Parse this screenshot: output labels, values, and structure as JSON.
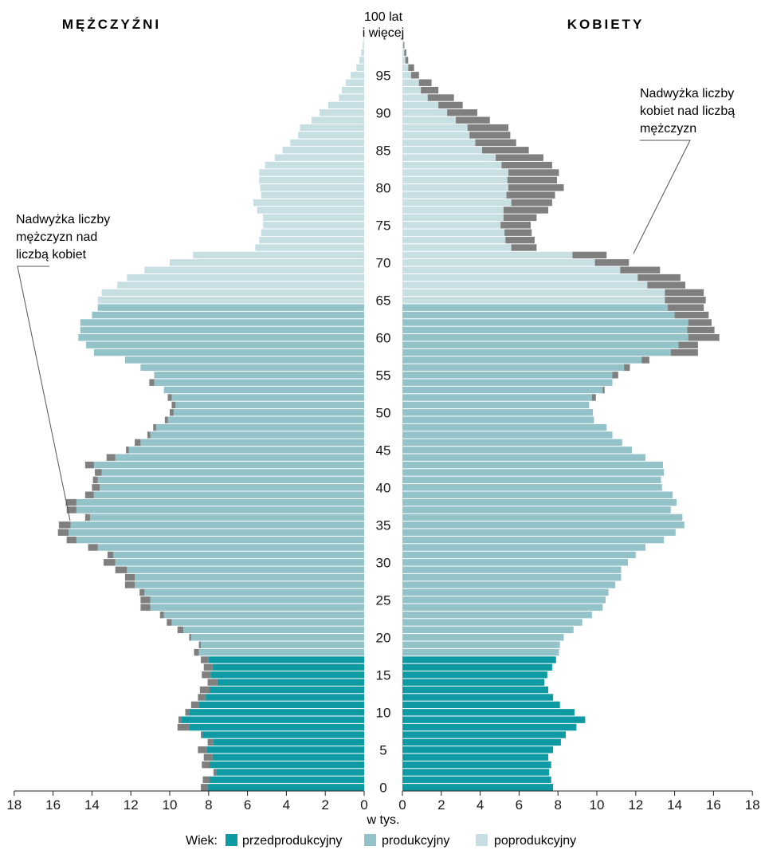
{
  "chart_data": {
    "type": "bar",
    "subtype": "population-pyramid",
    "unit_label": "w tys.",
    "left_title": "MĘŻCZYŹNI",
    "right_title": "KOBIETY",
    "top_age_label_line1": "100 lat",
    "top_age_label_line2": "i więcej",
    "age_tick_labels": [
      "0",
      "5",
      "10",
      "15",
      "20",
      "25",
      "30",
      "35",
      "40",
      "45",
      "50",
      "55",
      "60",
      "65",
      "70",
      "75",
      "80",
      "85",
      "90",
      "95"
    ],
    "x_tick_labels": [
      "18",
      "16",
      "14",
      "12",
      "10",
      "8",
      "6",
      "4",
      "2",
      "0"
    ],
    "x_range": [
      0,
      18
    ],
    "grid": false,
    "legend_position": "bottom",
    "legend": {
      "prefix": "Wiek:",
      "items": [
        {
          "key": "pre",
          "label": "przedprodukcyjny",
          "color": "#0e9aa3"
        },
        {
          "key": "prod",
          "label": "produkcyjny",
          "color": "#93c2c9"
        },
        {
          "key": "post",
          "label": "poprodukcyjny",
          "color": "#c7dfe3"
        }
      ]
    },
    "surplus_color": "#7f7f7f",
    "annotations": {
      "male_surplus": [
        "Nadwyżka liczby",
        "mężczyzn nad",
        "liczbą kobiet"
      ],
      "female_surplus": [
        "Nadwyżka liczby",
        "kobiet nad liczbą",
        "mężczyzn"
      ]
    },
    "ages": [
      0,
      1,
      2,
      3,
      4,
      5,
      6,
      7,
      8,
      9,
      10,
      11,
      12,
      13,
      14,
      15,
      16,
      17,
      18,
      19,
      20,
      21,
      22,
      23,
      24,
      25,
      26,
      27,
      28,
      29,
      30,
      31,
      32,
      33,
      34,
      35,
      36,
      37,
      38,
      39,
      40,
      41,
      42,
      43,
      44,
      45,
      46,
      47,
      48,
      49,
      50,
      51,
      52,
      53,
      54,
      55,
      56,
      57,
      58,
      59,
      60,
      61,
      62,
      63,
      64,
      65,
      66,
      67,
      68,
      69,
      70,
      71,
      72,
      73,
      74,
      75,
      76,
      77,
      78,
      79,
      80,
      81,
      82,
      83,
      84,
      85,
      86,
      87,
      88,
      89,
      90,
      91,
      92,
      93,
      94,
      95,
      96,
      97,
      98,
      99,
      100
    ],
    "series": [
      {
        "name": "MĘŻCZYŹNI",
        "values": [
          8.05,
          7.95,
          7.6,
          7.95,
          7.8,
          8.1,
          7.75,
          8.3,
          9.0,
          9.4,
          9.0,
          8.5,
          8.15,
          7.95,
          7.55,
          7.9,
          7.8,
          8.0,
          8.5,
          8.4,
          8.9,
          9.3,
          9.9,
          10.3,
          11.0,
          11.0,
          11.3,
          11.8,
          11.8,
          12.2,
          12.8,
          12.9,
          13.7,
          14.8,
          15.2,
          15.1,
          14.1,
          14.8,
          14.8,
          13.9,
          13.6,
          13.7,
          13.5,
          13.9,
          12.8,
          12.1,
          11.5,
          11.0,
          10.7,
          10.1,
          9.8,
          9.7,
          9.9,
          10.3,
          10.8,
          10.8,
          11.5,
          12.3,
          13.9,
          14.3,
          14.7,
          14.6,
          14.6,
          14.0,
          13.7,
          13.7,
          13.5,
          12.7,
          12.2,
          11.3,
          10.0,
          8.8,
          5.6,
          5.4,
          5.3,
          5.2,
          5.2,
          5.5,
          5.7,
          5.3,
          5.35,
          5.4,
          5.4,
          5.1,
          4.6,
          4.2,
          3.8,
          3.4,
          3.3,
          2.7,
          2.3,
          1.85,
          1.3,
          1.15,
          0.95,
          0.7,
          0.4,
          0.25,
          0.15,
          0.07,
          0.03
        ],
        "surplus": [
          0.35,
          0.35,
          0.15,
          0.4,
          0.45,
          0.45,
          0.3,
          0.1,
          0.6,
          0.15,
          0.2,
          0.4,
          0.4,
          0.5,
          0.5,
          0.45,
          0.45,
          0.4,
          0.25,
          0.1,
          0.1,
          0.3,
          0.25,
          0.2,
          0.5,
          0.5,
          0.25,
          0.5,
          0.5,
          0.6,
          0.6,
          0.3,
          0.5,
          0.5,
          0.55,
          0.6,
          0.25,
          0.5,
          0.55,
          0.45,
          0.4,
          0.25,
          0.35,
          0.45,
          0.45,
          0.15,
          0.3,
          0.15,
          0.15,
          0.15,
          0.2,
          0.2,
          0.2,
          0.0,
          0.25,
          0.0,
          0.0,
          0.0,
          0.0,
          0.0,
          0.0,
          0.0,
          0.0,
          0.0,
          0.0,
          0.0,
          0.0,
          0.0,
          0.0,
          0.0,
          0.0,
          0.0,
          0.0,
          0.0,
          0.0,
          0.0,
          0.0,
          0.0,
          0.0,
          0.0,
          0.0,
          0.0,
          0.0,
          0.0,
          0.0,
          0.0,
          0.0,
          0.0,
          0.0,
          0.0,
          0.0,
          0.0,
          0.0,
          0.0,
          0.0,
          0.0,
          0.0,
          0.0,
          0.0,
          0.0,
          0.0
        ]
      },
      {
        "name": "KOBIETY",
        "values": [
          7.75,
          7.65,
          7.55,
          7.65,
          7.5,
          7.75,
          8.15,
          8.4,
          8.95,
          9.4,
          8.85,
          8.1,
          7.75,
          7.5,
          7.3,
          7.45,
          7.7,
          7.9,
          8.05,
          8.1,
          8.3,
          8.8,
          9.25,
          9.75,
          10.3,
          10.45,
          10.6,
          10.95,
          11.25,
          11.25,
          11.6,
          12.0,
          12.5,
          13.45,
          14.05,
          14.5,
          14.4,
          13.8,
          14.1,
          13.9,
          13.35,
          13.3,
          13.45,
          13.4,
          12.5,
          11.8,
          11.3,
          10.8,
          10.5,
          9.85,
          9.8,
          9.6,
          9.75,
          10.3,
          10.8,
          10.8,
          11.4,
          12.3,
          13.8,
          14.2,
          14.7,
          14.65,
          14.7,
          14.0,
          13.65,
          13.5,
          13.5,
          12.6,
          12.1,
          11.2,
          9.9,
          8.75,
          5.6,
          5.3,
          5.25,
          5.05,
          5.2,
          5.2,
          5.6,
          5.35,
          5.45,
          5.4,
          5.45,
          5.1,
          4.8,
          4.1,
          3.75,
          3.45,
          3.35,
          2.75,
          2.3,
          1.85,
          1.3,
          0.95,
          0.85,
          0.45,
          0.3,
          0.15,
          0.1,
          0.05,
          0.03
        ],
        "surplus": [
          0.0,
          0.0,
          0.0,
          0.0,
          0.0,
          0.0,
          0.0,
          0.0,
          0.0,
          0.0,
          0.0,
          0.0,
          0.0,
          0.0,
          0.0,
          0.0,
          0.0,
          0.0,
          0.0,
          0.0,
          0.0,
          0.0,
          0.0,
          0.0,
          0.0,
          0.0,
          0.0,
          0.0,
          0.0,
          0.0,
          0.0,
          0.0,
          0.0,
          0.0,
          0.0,
          0.0,
          0.0,
          0.0,
          0.0,
          0.0,
          0.0,
          0.0,
          0.0,
          0.0,
          0.0,
          0.0,
          0.0,
          0.0,
          0.0,
          0.0,
          0.0,
          0.0,
          0.2,
          0.1,
          0.0,
          0.3,
          0.3,
          0.4,
          1.4,
          1.0,
          1.6,
          1.4,
          1.2,
          1.75,
          1.85,
          2.1,
          2.0,
          1.95,
          2.2,
          2.05,
          1.75,
          1.75,
          1.3,
          1.5,
          1.4,
          1.55,
          1.7,
          2.3,
          2.1,
          2.5,
          2.85,
          2.55,
          2.6,
          2.6,
          2.45,
          2.4,
          2.1,
          2.1,
          2.1,
          1.75,
          1.55,
          1.25,
          1.35,
          0.9,
          0.65,
          0.4,
          0.3,
          0.15,
          0.1,
          0.05,
          0.02
        ]
      }
    ]
  }
}
